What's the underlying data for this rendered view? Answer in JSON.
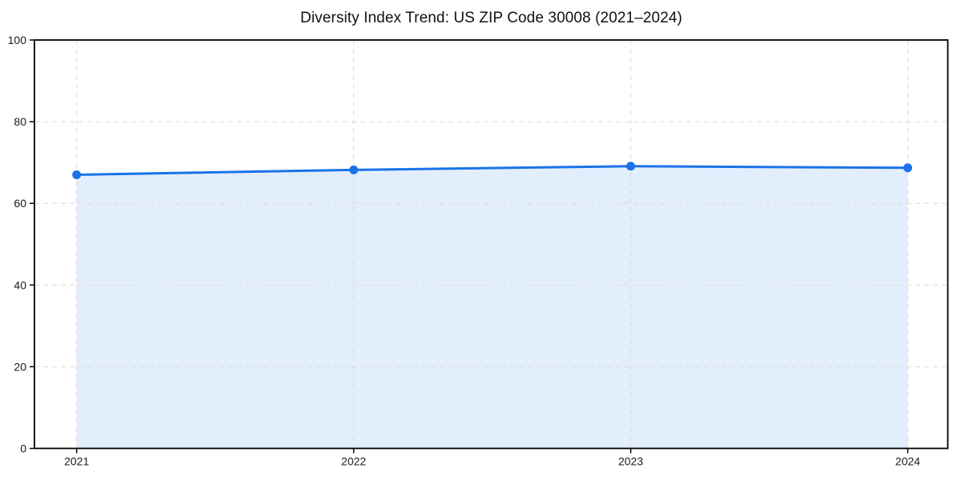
{
  "page": {
    "background": "#ffffff"
  },
  "chart_data": {
    "type": "line",
    "title": "Diversity Index Trend: US ZIP Code 30008 (2021–2024)",
    "x": [
      "2021",
      "2022",
      "2023",
      "2024"
    ],
    "values": [
      67.0,
      68.2,
      69.1,
      68.7
    ],
    "xlabel": "",
    "ylabel": "",
    "ylim": [
      0,
      100
    ],
    "yticks": [
      0,
      20,
      40,
      60,
      80,
      100
    ],
    "grid": true,
    "grid_style": "dashed",
    "legend_position": "none",
    "area_fill": true,
    "marker": "circle",
    "colors": {
      "line": "#1a73e8",
      "fill": "rgba(26,115,232,0.12)",
      "grid": "#d9d9d9",
      "axis": "#000000",
      "tick_text": "#1a1a1a",
      "title_text": "#111111"
    }
  }
}
